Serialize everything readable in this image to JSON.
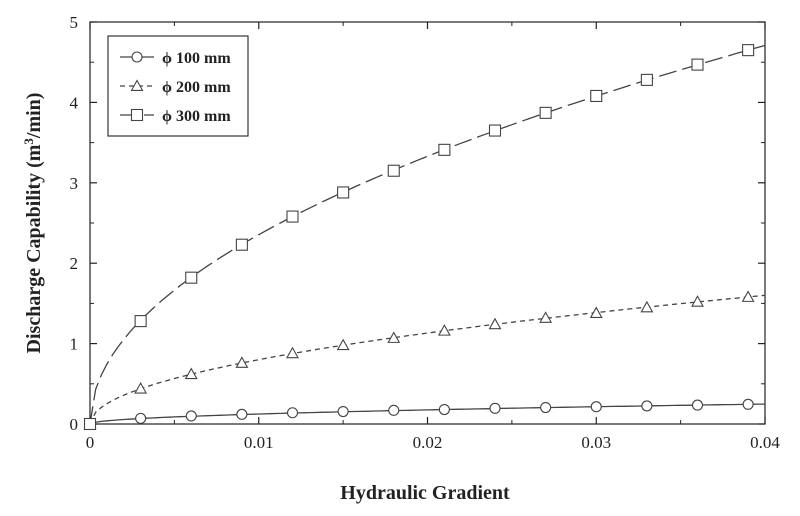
{
  "chart_data": {
    "type": "line",
    "xlabel": "Hydraulic Gradient",
    "ylabel_main": "Discharge Capability (m",
    "ylabel_sup": "3",
    "ylabel_tail": "/min)",
    "xlim": [
      0,
      0.04
    ],
    "ylim": [
      0,
      5
    ],
    "xticks": [
      0,
      0.01,
      0.02,
      0.03,
      0.04
    ],
    "xtick_labels": [
      "0",
      "0.01",
      "0.02",
      "0.03",
      "0.04"
    ],
    "yticks": [
      0,
      1,
      2,
      3,
      4,
      5
    ],
    "ytick_labels": [
      "0",
      "1",
      "2",
      "3",
      "4",
      "5"
    ],
    "grid": false,
    "legend_position": "top-left",
    "series": [
      {
        "name": "ϕ 100 mm",
        "marker": "circle",
        "line_style": "solid",
        "x": [
          0,
          0.003,
          0.006,
          0.009,
          0.012,
          0.015,
          0.018,
          0.021,
          0.024,
          0.027,
          0.03,
          0.033,
          0.036,
          0.039
        ],
        "y": [
          0,
          0.07,
          0.1,
          0.12,
          0.14,
          0.155,
          0.17,
          0.18,
          0.195,
          0.205,
          0.215,
          0.225,
          0.235,
          0.245
        ]
      },
      {
        "name": "ϕ 200 mm",
        "marker": "triangle",
        "line_style": "dashed",
        "x": [
          0,
          0.003,
          0.006,
          0.009,
          0.012,
          0.015,
          0.018,
          0.021,
          0.024,
          0.027,
          0.03,
          0.033,
          0.036,
          0.039
        ],
        "y": [
          0,
          0.44,
          0.62,
          0.76,
          0.88,
          0.98,
          1.07,
          1.16,
          1.24,
          1.32,
          1.38,
          1.45,
          1.52,
          1.58
        ]
      },
      {
        "name": "ϕ 300 mm",
        "marker": "square",
        "line_style": "long-dash",
        "x": [
          0,
          0.003,
          0.006,
          0.009,
          0.012,
          0.015,
          0.018,
          0.021,
          0.024,
          0.027,
          0.03,
          0.033,
          0.036,
          0.039
        ],
        "y": [
          0,
          1.28,
          1.82,
          2.23,
          2.58,
          2.88,
          3.15,
          3.41,
          3.65,
          3.87,
          4.08,
          4.28,
          4.47,
          4.65
        ]
      }
    ]
  },
  "colors": {
    "line": "#444444",
    "marker_fill": "#ffffff",
    "axis": "#222222"
  }
}
